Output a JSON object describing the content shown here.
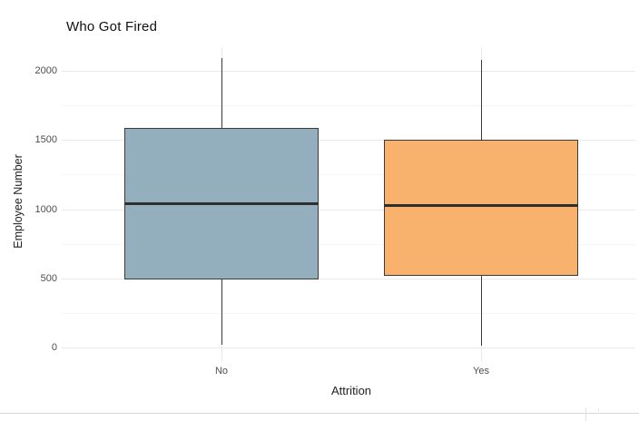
{
  "chart": {
    "title": "Who Got Fired",
    "x_axis": {
      "title": "Attrition",
      "labels": [
        "No",
        "Yes"
      ]
    },
    "y_axis": {
      "title": "Employee Number",
      "tick_labels": [
        "0",
        "500",
        "1000",
        "1500",
        "2000"
      ]
    }
  },
  "chart_data": {
    "type": "boxplot",
    "title": "Who Got Fired",
    "xlabel": "Attrition",
    "ylabel": "Employee Number",
    "categories": [
      "No",
      "Yes"
    ],
    "y_ticks": [
      {
        "value": 0,
        "label": "0"
      },
      {
        "value": 500,
        "label": "500"
      },
      {
        "value": 1000,
        "label": "1000"
      },
      {
        "value": 1500,
        "label": "1500"
      },
      {
        "value": 2000,
        "label": "2000"
      }
    ],
    "y_minor_ticks": [
      250,
      750,
      1250,
      1750
    ],
    "ylim": [
      -100,
      2170
    ],
    "grid": true,
    "legend": false,
    "background": "#ffffff",
    "series": [
      {
        "category": "No",
        "min": 20,
        "q1": 490,
        "median": 1040,
        "q3": 1585,
        "max": 2090,
        "fill": "#93aebc"
      },
      {
        "category": "Yes",
        "min": 13,
        "q1": 520,
        "median": 1025,
        "q3": 1500,
        "max": 2080,
        "fill": "#f8b26e"
      }
    ],
    "colors": {
      "box_border": "#3b3b3b",
      "median": "#2f2f2f",
      "grid_major": "#e9e9e9",
      "grid_minor": "#f6f6f6",
      "tick_label": "#4d4d4d",
      "title": "#111111"
    }
  }
}
